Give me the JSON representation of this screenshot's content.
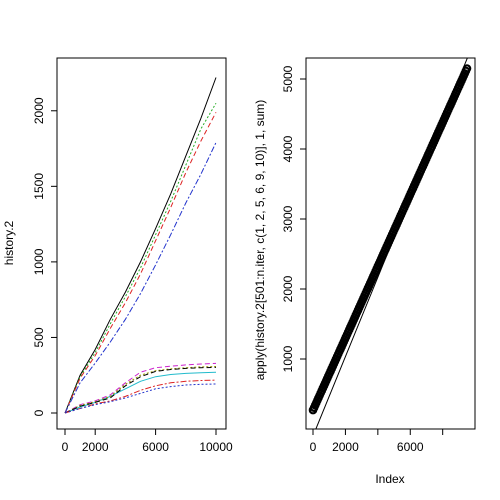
{
  "chart_data": [
    {
      "type": "line",
      "ylabel": "history.2",
      "xlim": [
        0,
        10000
      ],
      "ylim": [
        0,
        2250
      ],
      "x_ticks": [
        0,
        2000,
        6000,
        10000
      ],
      "y_ticks": [
        0,
        500,
        1000,
        1500,
        2000
      ],
      "x": [
        0,
        1000,
        2000,
        3000,
        4000,
        5000,
        6000,
        7000,
        8000,
        9000,
        10000
      ],
      "series": [
        {
          "color": "#000000",
          "dash": "solid",
          "values": [
            0,
            250,
            420,
            620,
            800,
            1000,
            1220,
            1450,
            1700,
            1950,
            2220
          ]
        },
        {
          "color": "#22aa22",
          "dash": "dotted",
          "values": [
            0,
            240,
            400,
            590,
            770,
            960,
            1180,
            1400,
            1640,
            1880,
            2050
          ]
        },
        {
          "color": "#dd2222",
          "dash": "dashed",
          "values": [
            0,
            230,
            380,
            560,
            730,
            920,
            1140,
            1360,
            1590,
            1800,
            1990
          ]
        },
        {
          "color": "#2233cc",
          "dash": "dashdot",
          "values": [
            0,
            200,
            330,
            470,
            620,
            790,
            980,
            1180,
            1390,
            1580,
            1790
          ]
        },
        {
          "color": "#22bbcc",
          "dash": "solid",
          "values": [
            0,
            40,
            70,
            110,
            160,
            210,
            240,
            255,
            262,
            267,
            270
          ]
        },
        {
          "color": "#cc22cc",
          "dash": "dashed",
          "values": [
            0,
            55,
            80,
            120,
            200,
            270,
            300,
            310,
            318,
            324,
            328
          ]
        },
        {
          "color": "#999900",
          "dash": "dotted",
          "values": [
            0,
            50,
            75,
            110,
            190,
            250,
            280,
            292,
            300,
            305,
            308
          ]
        },
        {
          "color": "#000000",
          "dash": "dashed",
          "values": [
            0,
            45,
            70,
            100,
            180,
            240,
            275,
            288,
            295,
            300,
            302
          ]
        },
        {
          "color": "#dd2222",
          "dash": "dashdot",
          "values": [
            0,
            30,
            60,
            80,
            110,
            150,
            180,
            200,
            210,
            215,
            218
          ]
        },
        {
          "color": "#2233cc",
          "dash": "dotted",
          "values": [
            0,
            30,
            55,
            75,
            100,
            130,
            160,
            175,
            185,
            190,
            192
          ]
        }
      ]
    },
    {
      "type": "scatter",
      "xlabel": "Index",
      "ylabel": "apply(history.2[501:n.iter, c(1, 2, 5, 6, 9, 10)], 1, sum)",
      "xlim": [
        0,
        9500
      ],
      "ylim": [
        0,
        5300
      ],
      "x_ticks": [
        0,
        2000,
        6000
      ],
      "y_ticks": [
        1000,
        2000,
        3000,
        4000,
        5000
      ],
      "points": {
        "x_start": 1,
        "x_end": 9500,
        "y_start": 270,
        "y_end": 5150
      },
      "reference_line": {
        "intercept": -100,
        "slope": 0.5671
      }
    }
  ]
}
